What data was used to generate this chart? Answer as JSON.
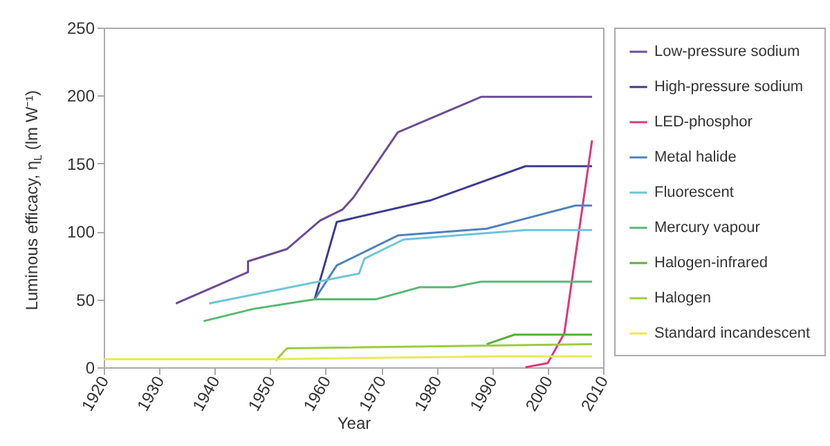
{
  "chart_data": {
    "type": "line",
    "xlabel": "Year",
    "ylabel": "Luminous efficacy, η$_{L}$ (lm W⁻¹)",
    "xlim": [
      1920,
      2010
    ],
    "xticks": [
      1920,
      1930,
      1940,
      1950,
      1960,
      1970,
      1980,
      1990,
      2000,
      2010
    ],
    "ylim": [
      0,
      250
    ],
    "yticks": [
      0,
      50,
      100,
      150,
      200,
      250
    ],
    "grid": false,
    "legend": "right",
    "series": [
      {
        "name": "Low-pressure sodium",
        "color": "#6a4c93",
        "x": [
          1933,
          1946,
          1946,
          1953,
          1959,
          1963,
          1965,
          1973,
          1988,
          2008
        ],
        "values": [
          47,
          70,
          78,
          87,
          108,
          116,
          125,
          173,
          199,
          199
        ]
      },
      {
        "name": "High-pressure sodium",
        "color": "#3d3b8e",
        "x": [
          1958,
          1962,
          1979,
          1996,
          2008
        ],
        "values": [
          50,
          107,
          123,
          148,
          148
        ]
      },
      {
        "name": "LED-phosphor",
        "color": "#e0357a",
        "x": [
          1996,
          2000,
          2003,
          2008
        ],
        "values": [
          0,
          3,
          25,
          167
        ]
      },
      {
        "name": "Metal halide",
        "color": "#4f81bd",
        "x": [
          1958,
          1962,
          1973,
          1989,
          2005,
          2008
        ],
        "values": [
          50,
          75,
          97,
          102,
          119,
          119
        ]
      },
      {
        "name": "Fluorescent",
        "color": "#6cc5d6",
        "x": [
          1939,
          1966,
          1967,
          1974,
          1996,
          2008
        ],
        "values": [
          47,
          69,
          80,
          94,
          101,
          101
        ]
      },
      {
        "name": "Mercury vapour",
        "color": "#56b870",
        "x": [
          1938,
          1947,
          1958,
          1969,
          1977,
          1983,
          1988,
          2008
        ],
        "values": [
          34,
          43,
          50,
          50,
          59,
          59,
          63,
          63
        ]
      },
      {
        "name": "Halogen-infrared",
        "color": "#5aae3a",
        "x": [
          1989,
          1994,
          2008
        ],
        "values": [
          17,
          24,
          24
        ]
      },
      {
        "name": "Halogen",
        "color": "#9ccc3c",
        "x": [
          1951,
          1953,
          2008
        ],
        "values": [
          5,
          14,
          17
        ]
      },
      {
        "name": "Standard incandescent",
        "color": "#e8e85a",
        "x": [
          1920,
          1951,
          1990,
          2008
        ],
        "values": [
          6,
          6,
          8,
          8
        ]
      }
    ]
  }
}
